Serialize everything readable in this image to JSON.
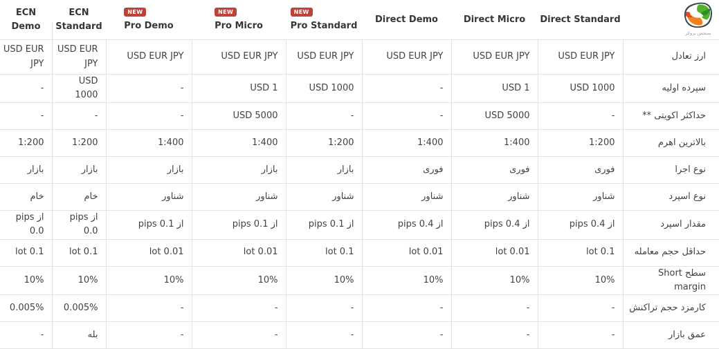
{
  "logo": {
    "caption": "سنجش بروکر"
  },
  "theme": {
    "badge_color": "#bf4138",
    "border_color": "#e2e2e2"
  },
  "table": {
    "columns": [
      {
        "label": "ECN Demo",
        "badge": null
      },
      {
        "label": "ECN Standard",
        "badge": null
      },
      {
        "label": "Pro Demo",
        "badge": "NEW"
      },
      {
        "label": "Pro Micro",
        "badge": "NEW"
      },
      {
        "label": "Pro Standard",
        "badge": "NEW"
      },
      {
        "label": "Direct Demo",
        "badge": null
      },
      {
        "label": "Direct Micro",
        "badge": null
      },
      {
        "label": "Direct Standard",
        "badge": null
      }
    ],
    "rows": [
      {
        "label": "ارز تعادل",
        "values": [
          "USD EUR JPY",
          "USD EUR JPY",
          "USD EUR JPY",
          "USD EUR JPY",
          "USD EUR JPY",
          "USD EUR JPY",
          "USD EUR JPY",
          "USD EUR JPY"
        ]
      },
      {
        "label": "سپرده اولیه",
        "values": [
          "-",
          "USD 1000",
          "-",
          "USD 1",
          "USD 1000",
          "-",
          "USD 1",
          "USD 1000"
        ]
      },
      {
        "label": "حداکثر اکویتی **",
        "values": [
          "-",
          "-",
          "-",
          "USD 5000",
          "-",
          "-",
          "USD 5000",
          "-"
        ]
      },
      {
        "label": "بالاترین اهرم",
        "values": [
          "1:200",
          "1:200",
          "1:400",
          "1:400",
          "1:200",
          "1:400",
          "1:400",
          "1:200"
        ]
      },
      {
        "label": "نوع اجرا",
        "values": [
          "بازار",
          "بازار",
          "بازار",
          "بازار",
          "بازار",
          "فوری",
          "فوری",
          "فوری"
        ]
      },
      {
        "label": "نوع اسپرد",
        "values": [
          "خام",
          "خام",
          "شناور",
          "شناور",
          "شناور",
          "شناور",
          "شناور",
          "شناور"
        ]
      },
      {
        "label": "مقدار اسپرد",
        "values": [
          "از pips 0.0",
          "از pips 0.0",
          "از pips 0.1",
          "از pips 0.1",
          "از pips 0.1",
          "از pips 0.4",
          "از pips 0.4",
          "از pips 0.4"
        ]
      },
      {
        "label": "حداقل حجم معامله",
        "values": [
          "lot 0.1",
          "lot 0.1",
          "lot 0.01",
          "lot 0.01",
          "lot 0.1",
          "lot 0.01",
          "lot 0.01",
          "lot 0.1"
        ]
      },
      {
        "label": "سطح Short margin",
        "values": [
          "10%",
          "10%",
          "10%",
          "10%",
          "10%",
          "10%",
          "10%",
          "10%"
        ]
      },
      {
        "label": "کارمزد حجم تراکنش",
        "values": [
          "0.005%",
          "0.005%",
          "-",
          "-",
          "-",
          "-",
          "-",
          "-"
        ]
      },
      {
        "label": "عمق بازار",
        "values": [
          "-",
          "بله",
          "-",
          "-",
          "-",
          "-",
          "-",
          "-"
        ]
      }
    ]
  }
}
